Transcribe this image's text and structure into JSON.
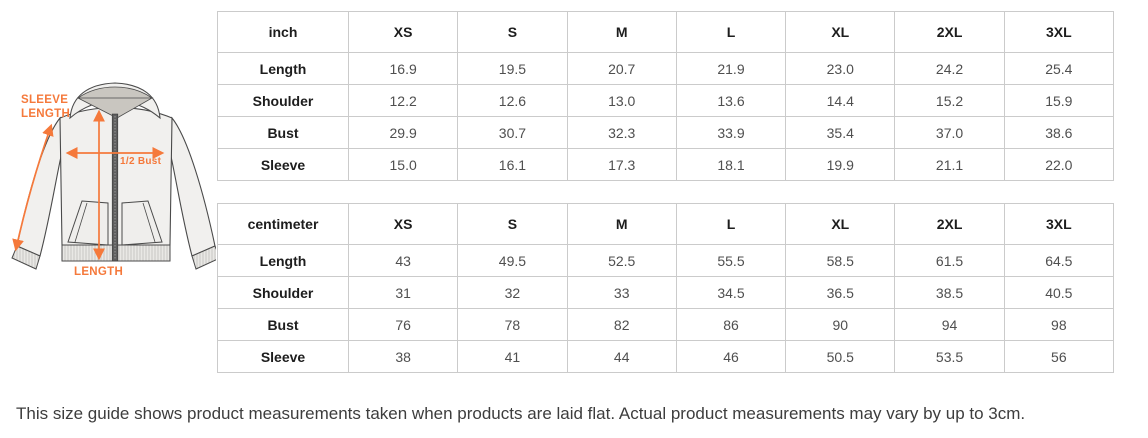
{
  "diagram": {
    "accent_color": "#f5793b",
    "labels": {
      "sleeve_line1": "SLEEVE",
      "sleeve_line2": "LENGTH",
      "half_bust": "1/2 Bust",
      "length": "LENGTH"
    }
  },
  "tables": [
    {
      "unit_header": "inch",
      "size_headers": [
        "XS",
        "S",
        "M",
        "L",
        "XL",
        "2XL",
        "3XL"
      ],
      "rows": [
        {
          "label": "Length",
          "values": [
            "16.9",
            "19.5",
            "20.7",
            "21.9",
            "23.0",
            "24.2",
            "25.4"
          ]
        },
        {
          "label": "Shoulder",
          "values": [
            "12.2",
            "12.6",
            "13.0",
            "13.6",
            "14.4",
            "15.2",
            "15.9"
          ]
        },
        {
          "label": "Bust",
          "values": [
            "29.9",
            "30.7",
            "32.3",
            "33.9",
            "35.4",
            "37.0",
            "38.6"
          ]
        },
        {
          "label": "Sleeve",
          "values": [
            "15.0",
            "16.1",
            "17.3",
            "18.1",
            "19.9",
            "21.1",
            "22.0"
          ]
        }
      ]
    },
    {
      "unit_header": "centimeter",
      "size_headers": [
        "XS",
        "S",
        "M",
        "L",
        "XL",
        "2XL",
        "3XL"
      ],
      "rows": [
        {
          "label": "Length",
          "values": [
            "43",
            "49.5",
            "52.5",
            "55.5",
            "58.5",
            "61.5",
            "64.5"
          ]
        },
        {
          "label": "Shoulder",
          "values": [
            "31",
            "32",
            "33",
            "34.5",
            "36.5",
            "38.5",
            "40.5"
          ]
        },
        {
          "label": "Bust",
          "values": [
            "76",
            "78",
            "82",
            "86",
            "90",
            "94",
            "98"
          ]
        },
        {
          "label": "Sleeve",
          "values": [
            "38",
            "41",
            "44",
            "46",
            "50.5",
            "53.5",
            "56"
          ]
        }
      ]
    }
  ],
  "footer_note": "This size guide shows product measurements taken when products are laid flat. Actual product measurements may vary by up to 3cm."
}
